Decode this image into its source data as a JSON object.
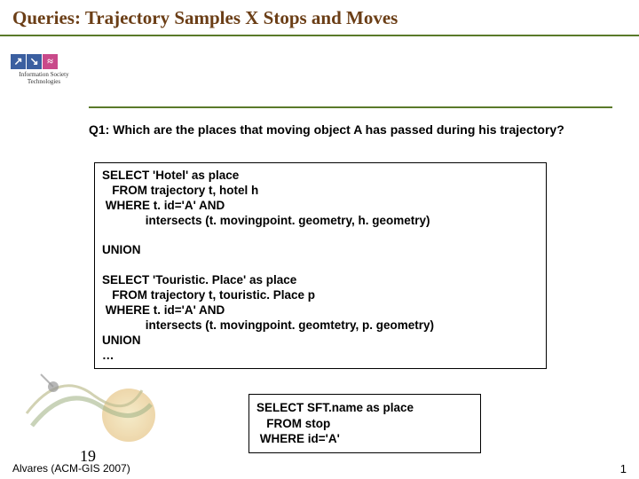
{
  "title": "Queries: Trajectory Samples X Stops and Moves",
  "title_color": "#6b3e16",
  "title_underline_color": "#5a7a2a",
  "hr2_color": "#5a7a2a",
  "ist_logo": {
    "cells": [
      {
        "bg": "#3b5fa0",
        "glyph": "↗"
      },
      {
        "bg": "#3b5fa0",
        "glyph": "↘"
      },
      {
        "bg": "#c94a8a",
        "glyph": "≈"
      }
    ],
    "label_line1": "Information Society",
    "label_line2": "Technologies"
  },
  "question": "Q1: Which are the places that moving object A has passed during his trajectory?",
  "code_box_1_lines": [
    "SELECT 'Hotel' as place",
    "   FROM trajectory t, hotel h",
    " WHERE t. id='A' AND",
    "             intersects (t. movingpoint. geometry, h. geometry)",
    "",
    "UNION",
    "",
    "SELECT 'Touristic. Place' as place",
    "   FROM trajectory t, touristic. Place p",
    " WHERE t. id='A' AND",
    "             intersects (t. movingpoint. geomtetry, p. geometry)",
    "UNION",
    "…"
  ],
  "code_box_2_lines": [
    "SELECT SFT.name as place",
    "   FROM stop",
    " WHERE id='A'"
  ],
  "swirl_colors": {
    "orange": "#d9a84a",
    "green": "#5a7a2a",
    "stroke": "#8a8a3a"
  },
  "page_num_left": "19",
  "citation": "Alvares (ACM-GIS 2007)",
  "page_num_right": "1"
}
